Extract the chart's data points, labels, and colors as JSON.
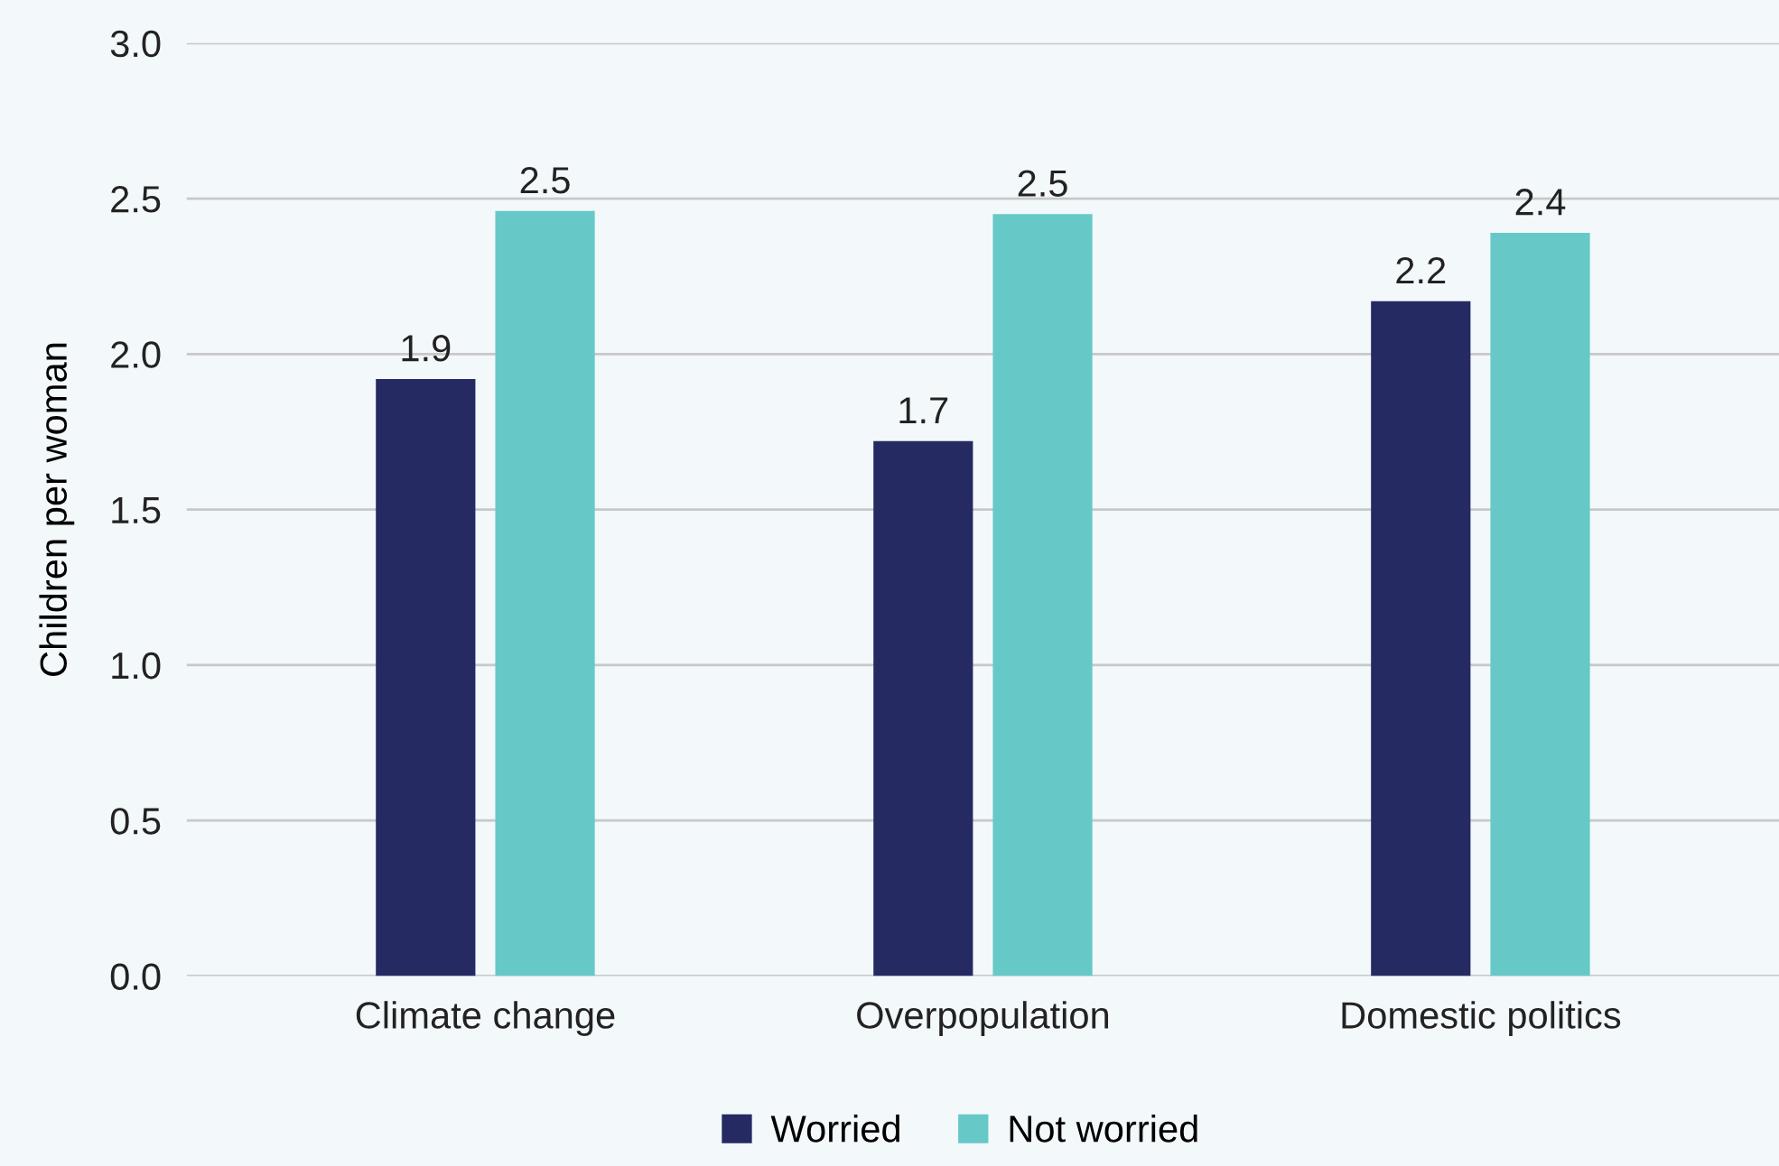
{
  "chart_data": {
    "type": "bar",
    "ylabel": "Children per woman",
    "categories": [
      "Climate change",
      "Overpopulation",
      "Domestic politics"
    ],
    "series": [
      {
        "name": "Worried",
        "color": "#252a63",
        "values": [
          1.92,
          1.72,
          2.17
        ],
        "value_labels": [
          "1.9",
          "1.7",
          "2.2"
        ]
      },
      {
        "name": "Not worried",
        "color": "#66c9c8",
        "values": [
          2.46,
          2.45,
          2.39
        ],
        "value_labels": [
          "2.5",
          "2.5",
          "2.4"
        ]
      }
    ],
    "ylim": [
      0,
      3
    ],
    "yticks": [
      {
        "value": 0,
        "label": "0.0"
      },
      {
        "value": 0.5,
        "label": "0.5"
      },
      {
        "value": 1,
        "label": "1.0"
      },
      {
        "value": 1.5,
        "label": "1.5"
      },
      {
        "value": 2,
        "label": "2.0"
      },
      {
        "value": 2.5,
        "label": "2.5"
      },
      {
        "value": 3,
        "label": "3.0"
      }
    ],
    "grid": "y",
    "legend": "bottom"
  }
}
